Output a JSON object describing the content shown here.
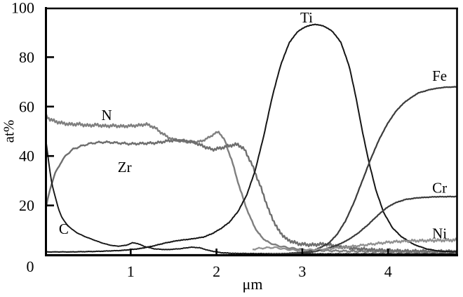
{
  "figure": {
    "background": "#ffffff",
    "axis_color": "#000000",
    "xlabel": "μm",
    "ylabel": "at%",
    "origin_label": "0",
    "x_tick_labels": [
      "0",
      "1",
      "2",
      "3",
      "4"
    ],
    "y_tick_labels": [
      "0",
      "20",
      "40",
      "60",
      "80",
      "100"
    ]
  },
  "chart_data": {
    "type": "line",
    "title": "",
    "xlabel": "μm",
    "ylabel": "at%",
    "xlim": [
      0,
      4.82
    ],
    "ylim": [
      0,
      100
    ],
    "x_ticks": [
      0,
      1,
      2,
      3,
      4
    ],
    "y_ticks": [
      0,
      20,
      40,
      60,
      80,
      100
    ],
    "grid": false,
    "legend": "inline-labels",
    "series": [
      {
        "name": "N",
        "color": "#7f7f7f",
        "width": 2.4,
        "noisy": true,
        "label_pos": [
          0.72,
          56.5
        ],
        "points": [
          [
            0,
            57
          ],
          [
            0.05,
            55
          ],
          [
            0.12,
            54
          ],
          [
            0.2,
            53.3
          ],
          [
            0.3,
            52.8
          ],
          [
            0.4,
            52.9
          ],
          [
            0.5,
            52.3
          ],
          [
            0.6,
            52.6
          ],
          [
            0.7,
            52.1
          ],
          [
            0.8,
            52.3
          ],
          [
            0.9,
            52
          ],
          [
            1.0,
            52.2
          ],
          [
            1.1,
            52.4
          ],
          [
            1.18,
            52.9
          ],
          [
            1.28,
            51.5
          ],
          [
            1.38,
            48.8
          ],
          [
            1.48,
            46.8
          ],
          [
            1.58,
            46.2
          ],
          [
            1.68,
            45.8
          ],
          [
            1.78,
            45.6
          ],
          [
            1.88,
            46.8
          ],
          [
            1.97,
            48.9
          ],
          [
            2.03,
            49.8
          ],
          [
            2.1,
            46
          ],
          [
            2.18,
            38
          ],
          [
            2.28,
            26
          ],
          [
            2.38,
            16
          ],
          [
            2.48,
            9
          ],
          [
            2.58,
            5.5
          ],
          [
            2.7,
            3.8
          ],
          [
            2.85,
            2.8
          ],
          [
            3.0,
            2.2
          ],
          [
            3.2,
            1.8
          ],
          [
            3.5,
            1.5
          ],
          [
            4.0,
            1.3
          ],
          [
            4.4,
            1.2
          ],
          [
            4.81,
            1.2
          ]
        ]
      },
      {
        "name": "Zr",
        "color": "#6e6e6e",
        "width": 2.4,
        "noisy": true,
        "label_pos": [
          0.93,
          35.5
        ],
        "points": [
          [
            0,
            16
          ],
          [
            0.03,
            22
          ],
          [
            0.07,
            28
          ],
          [
            0.12,
            33
          ],
          [
            0.18,
            37
          ],
          [
            0.25,
            40.5
          ],
          [
            0.33,
            42.8
          ],
          [
            0.42,
            44
          ],
          [
            0.52,
            45
          ],
          [
            0.62,
            45.5
          ],
          [
            0.72,
            45.6
          ],
          [
            0.85,
            45.3
          ],
          [
            1.0,
            44.9
          ],
          [
            1.15,
            45.1
          ],
          [
            1.3,
            45.3
          ],
          [
            1.45,
            46.2
          ],
          [
            1.55,
            46.4
          ],
          [
            1.65,
            46
          ],
          [
            1.75,
            45.4
          ],
          [
            1.85,
            43.9
          ],
          [
            1.95,
            42.6
          ],
          [
            2.05,
            43.2
          ],
          [
            2.15,
            44.2
          ],
          [
            2.25,
            44.7
          ],
          [
            2.33,
            42.5
          ],
          [
            2.42,
            36
          ],
          [
            2.52,
            27
          ],
          [
            2.62,
            17
          ],
          [
            2.72,
            10
          ],
          [
            2.82,
            6.2
          ],
          [
            2.95,
            4.5
          ],
          [
            3.1,
            4
          ],
          [
            3.25,
            4.4
          ],
          [
            3.4,
            3.6
          ],
          [
            3.6,
            2.6
          ],
          [
            3.85,
            2
          ],
          [
            4.2,
            1.6
          ],
          [
            4.81,
            1.5
          ]
        ]
      },
      {
        "name": "C",
        "color": "#161616",
        "width": 1.9,
        "noisy": false,
        "label_pos": [
          0.22,
          10.5
        ],
        "points": [
          [
            0,
            50
          ],
          [
            0.02,
            44
          ],
          [
            0.05,
            36
          ],
          [
            0.08,
            29
          ],
          [
            0.12,
            23.5
          ],
          [
            0.16,
            18.5
          ],
          [
            0.2,
            15
          ],
          [
            0.25,
            12.5
          ],
          [
            0.31,
            10.5
          ],
          [
            0.38,
            8.8
          ],
          [
            0.46,
            7.5
          ],
          [
            0.55,
            6.3
          ],
          [
            0.65,
            5
          ],
          [
            0.75,
            4
          ],
          [
            0.85,
            3.5
          ],
          [
            0.95,
            3.9
          ],
          [
            1.02,
            4.9
          ],
          [
            1.08,
            4.6
          ],
          [
            1.16,
            3.4
          ],
          [
            1.28,
            2.4
          ],
          [
            1.42,
            2.1
          ],
          [
            1.58,
            2.5
          ],
          [
            1.7,
            3.1
          ],
          [
            1.8,
            2.9
          ],
          [
            1.92,
            1.7
          ],
          [
            2.05,
            0.9
          ],
          [
            2.2,
            0.6
          ],
          [
            2.5,
            0.5
          ],
          [
            3.0,
            0.4
          ],
          [
            3.6,
            0.4
          ],
          [
            4.2,
            0.4
          ],
          [
            4.81,
            0.4
          ]
        ]
      },
      {
        "name": "Ti",
        "color": "#161616",
        "width": 2.0,
        "noisy": false,
        "label_pos": [
          3.05,
          96
        ],
        "points": [
          [
            0,
            1.2
          ],
          [
            0.3,
            1.2
          ],
          [
            0.6,
            1.4
          ],
          [
            0.9,
            1.8
          ],
          [
            1.1,
            2.5
          ],
          [
            1.25,
            3.5
          ],
          [
            1.4,
            4.8
          ],
          [
            1.55,
            5.8
          ],
          [
            1.7,
            6.4
          ],
          [
            1.85,
            7.2
          ],
          [
            1.95,
            8.6
          ],
          [
            2.05,
            10.6
          ],
          [
            2.15,
            13.2
          ],
          [
            2.25,
            17.5
          ],
          [
            2.35,
            24
          ],
          [
            2.45,
            34
          ],
          [
            2.55,
            48
          ],
          [
            2.65,
            64
          ],
          [
            2.75,
            77
          ],
          [
            2.85,
            86
          ],
          [
            2.95,
            90.5
          ],
          [
            3.05,
            92.5
          ],
          [
            3.15,
            93.3
          ],
          [
            3.25,
            92.6
          ],
          [
            3.35,
            90.5
          ],
          [
            3.45,
            86
          ],
          [
            3.55,
            76
          ],
          [
            3.63,
            63
          ],
          [
            3.7,
            50
          ],
          [
            3.78,
            37
          ],
          [
            3.86,
            26
          ],
          [
            3.95,
            17
          ],
          [
            4.05,
            11
          ],
          [
            4.15,
            7.5
          ],
          [
            4.3,
            4.2
          ],
          [
            4.45,
            2.4
          ],
          [
            4.6,
            1.5
          ],
          [
            4.81,
            1.2
          ]
        ]
      },
      {
        "name": "Fe",
        "color": "#3c3c3c",
        "width": 2.2,
        "noisy": false,
        "label_pos": [
          4.6,
          72.5
        ],
        "points": [
          [
            2.6,
            0.3
          ],
          [
            2.8,
            0.5
          ],
          [
            3.0,
            1
          ],
          [
            3.15,
            2
          ],
          [
            3.3,
            4.5
          ],
          [
            3.4,
            8
          ],
          [
            3.5,
            13.5
          ],
          [
            3.6,
            21
          ],
          [
            3.7,
            30
          ],
          [
            3.8,
            39
          ],
          [
            3.9,
            47
          ],
          [
            4.0,
            53.5
          ],
          [
            4.1,
            58.5
          ],
          [
            4.2,
            62
          ],
          [
            4.35,
            65.5
          ],
          [
            4.5,
            67
          ],
          [
            4.65,
            67.8
          ],
          [
            4.81,
            68
          ]
        ]
      },
      {
        "name": "Cr",
        "color": "#3c3c3c",
        "width": 2.2,
        "noisy": false,
        "label_pos": [
          4.6,
          27.2
        ],
        "points": [
          [
            2.7,
            0.2
          ],
          [
            2.9,
            0.5
          ],
          [
            3.1,
            1
          ],
          [
            3.25,
            2.2
          ],
          [
            3.4,
            3.8
          ],
          [
            3.52,
            5.8
          ],
          [
            3.64,
            8.5
          ],
          [
            3.76,
            12
          ],
          [
            3.88,
            16
          ],
          [
            3.98,
            19
          ],
          [
            4.08,
            21
          ],
          [
            4.2,
            22.4
          ],
          [
            4.35,
            23.1
          ],
          [
            4.55,
            23.5
          ],
          [
            4.81,
            23.6
          ]
        ]
      },
      {
        "name": "Ni",
        "color": "#919191",
        "width": 2.3,
        "noisy": true,
        "label_pos": [
          4.6,
          8.7
        ],
        "points": [
          [
            2.42,
            2.3
          ],
          [
            2.55,
            2.8
          ],
          [
            2.68,
            3
          ],
          [
            2.8,
            2.3
          ],
          [
            2.95,
            1.8
          ],
          [
            3.1,
            2
          ],
          [
            3.25,
            2.3
          ],
          [
            3.4,
            2.8
          ],
          [
            3.55,
            3.3
          ],
          [
            3.7,
            3.9
          ],
          [
            3.85,
            4.5
          ],
          [
            4.0,
            5.1
          ],
          [
            4.15,
            5.5
          ],
          [
            4.3,
            5.7
          ],
          [
            4.5,
            5.8
          ],
          [
            4.81,
            6
          ]
        ]
      }
    ]
  }
}
